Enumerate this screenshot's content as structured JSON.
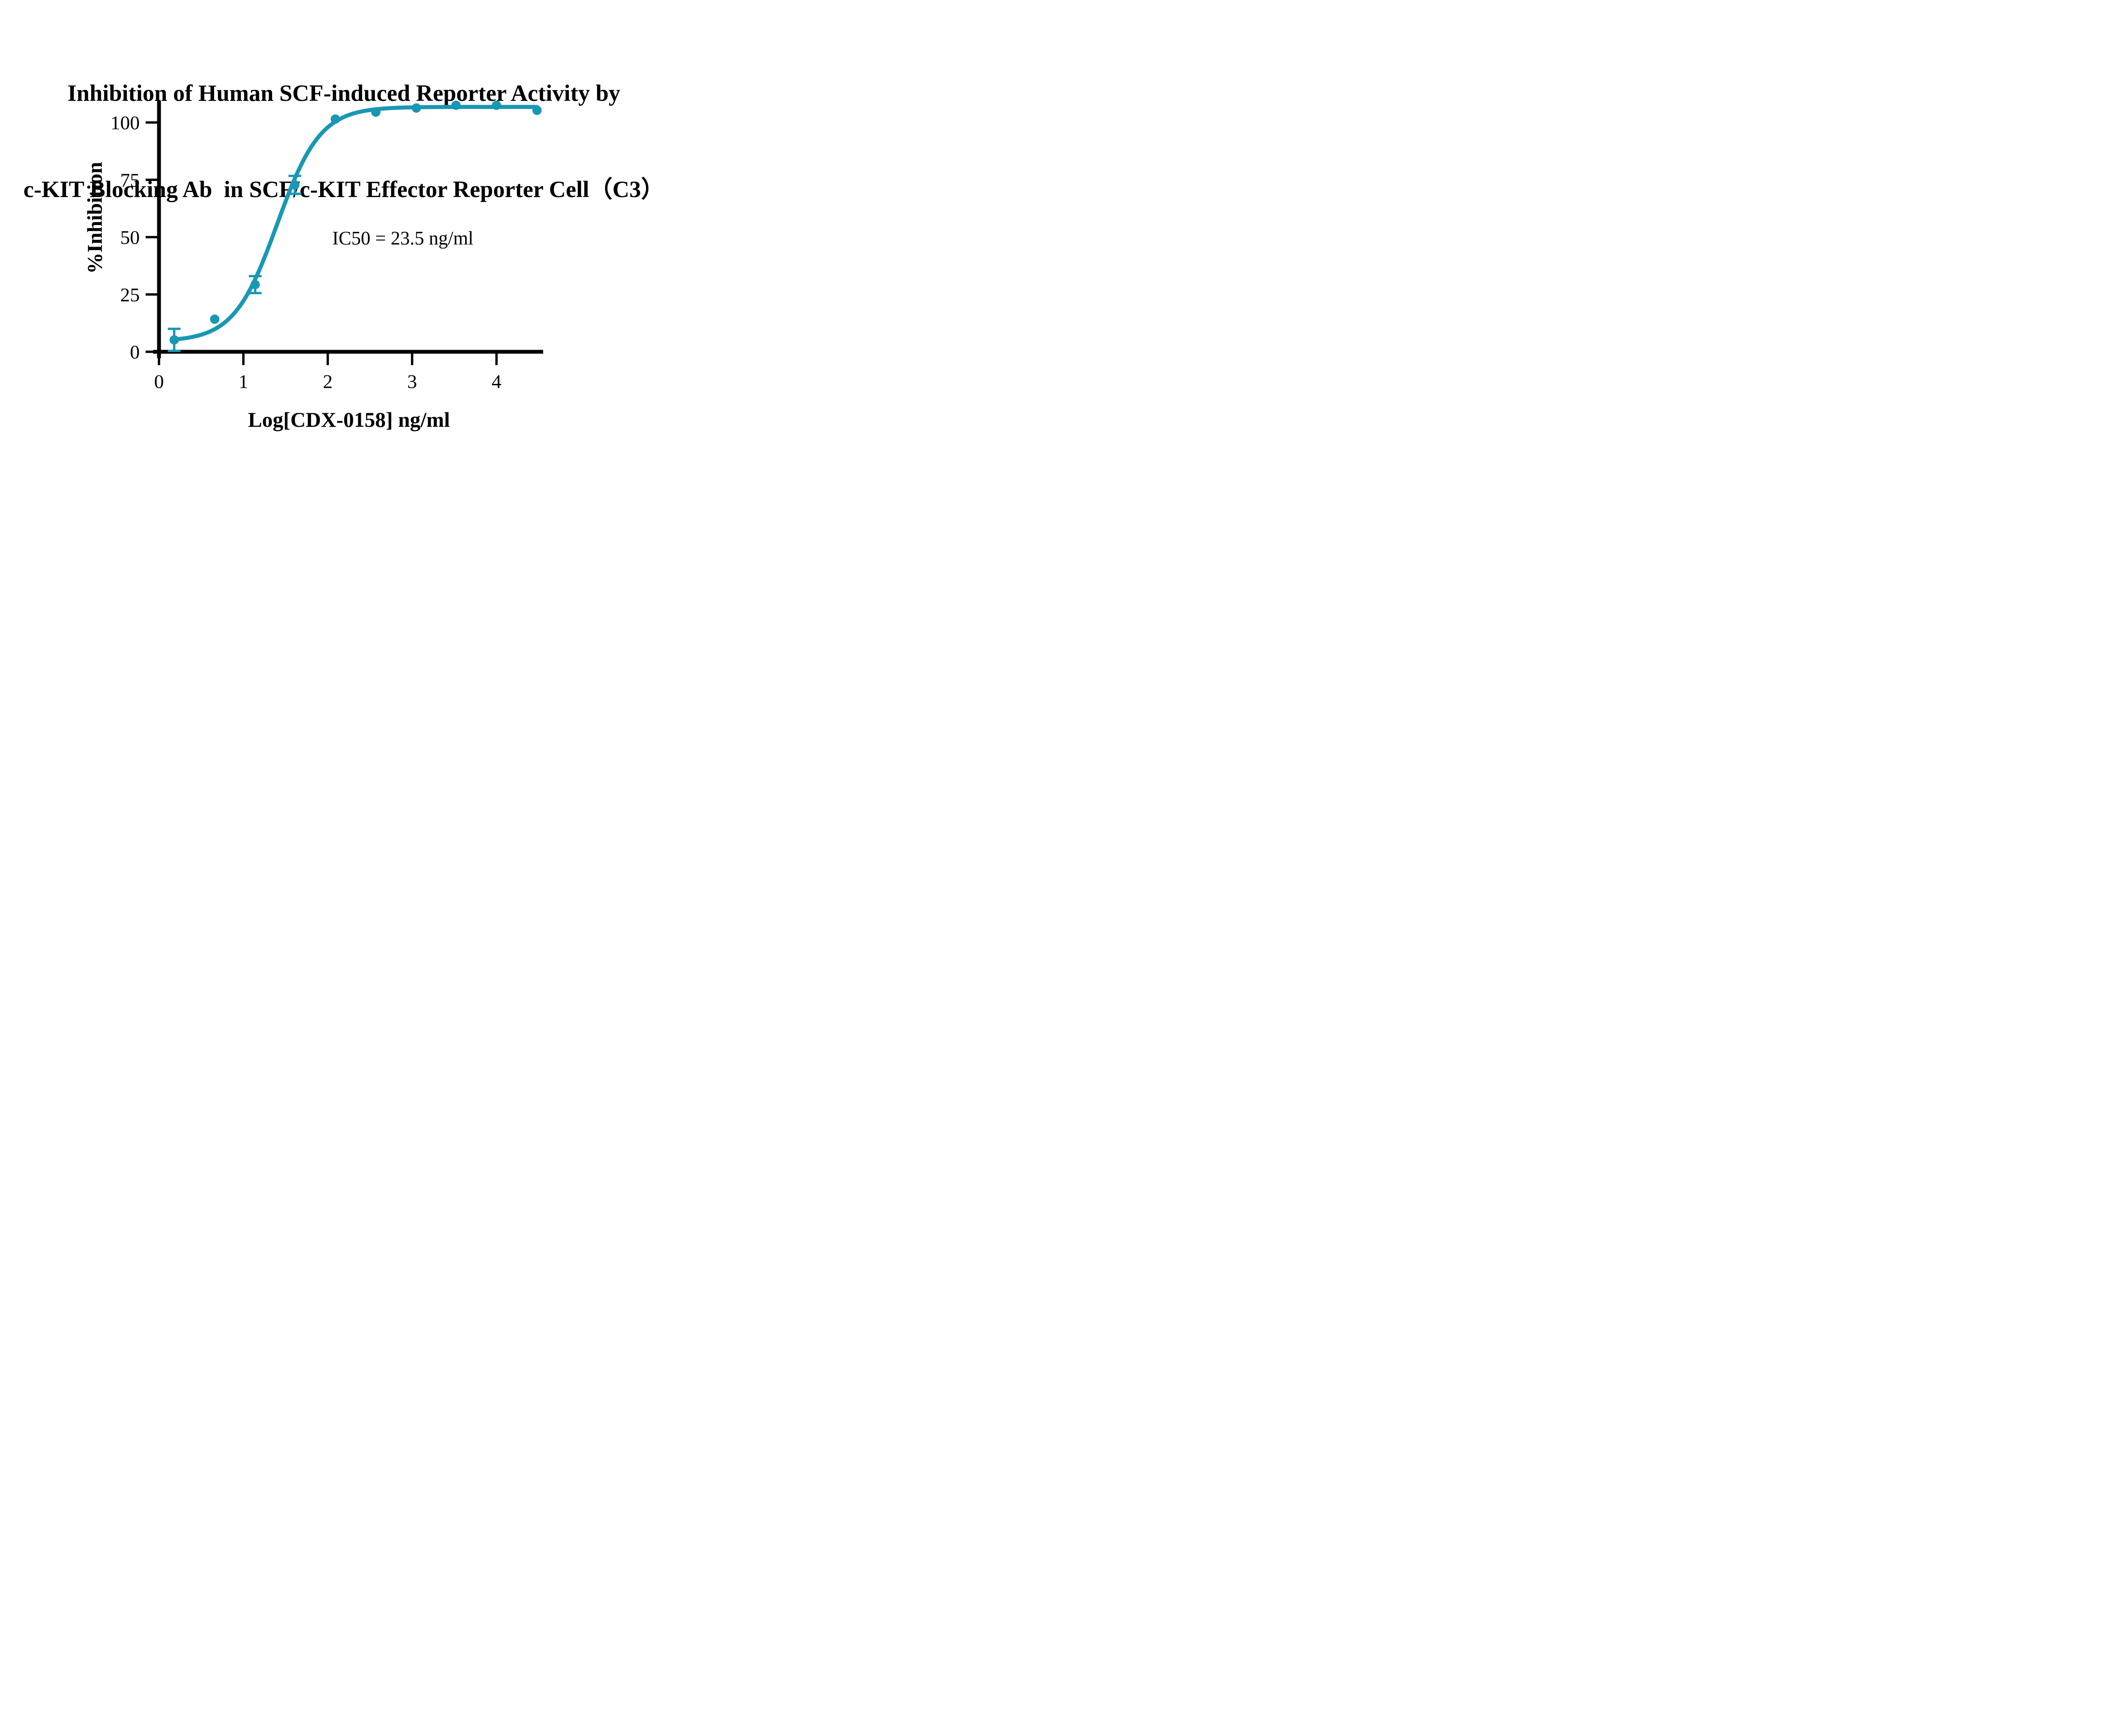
{
  "title": {
    "line1": "Inhibition of Human SCF-induced Reporter Activity by",
    "line2": "c-KIT Blocking Ab  in SCF/c-KIT Effector Reporter Cell（C3）"
  },
  "annotation": {
    "ic50_text": "IC50 = 23.5 ng/ml",
    "x_data": 2.89,
    "y_data": 49.5
  },
  "colors": {
    "series": "#1898B4",
    "axis": "#000000",
    "text": "#000000",
    "background": "#FFFFFF"
  },
  "chart_data": {
    "type": "scatter",
    "title": "Inhibition of Human SCF-induced Reporter Activity by c-KIT Blocking Ab in SCF/c-KIT Effector Reporter Cell（C3）",
    "xlabel": "Log[CDX-0158] ng/ml",
    "ylabel": "%Inhibition",
    "xlim": [
      0,
      4.55
    ],
    "ylim": [
      0,
      109.6
    ],
    "xticks": [
      0,
      1,
      2,
      3,
      4
    ],
    "yticks": [
      0,
      25,
      50,
      75,
      100
    ],
    "grid": false,
    "legend": "none",
    "series": [
      {
        "name": "CDX-0158",
        "marker": "circle",
        "x": [
          0.18,
          0.66,
          1.14,
          1.61,
          2.09,
          2.57,
          3.05,
          3.52,
          4.0,
          4.48
        ],
        "y": [
          5.2,
          14.2,
          29.3,
          72.8,
          101.5,
          104.5,
          106.3,
          107.5,
          107.5,
          105.3
        ],
        "yerr": [
          4.8,
          0,
          3.7,
          3.9,
          0,
          0,
          0,
          0,
          0,
          0
        ]
      }
    ],
    "fit_curve": {
      "model": "four-parameter-logistic",
      "bottom": 4.5,
      "top": 106.8,
      "logIC50": 1.4,
      "hill": 1.7,
      "x_start": 0.18,
      "x_end": 4.48,
      "ic50_ng_ml": 23.5
    }
  }
}
